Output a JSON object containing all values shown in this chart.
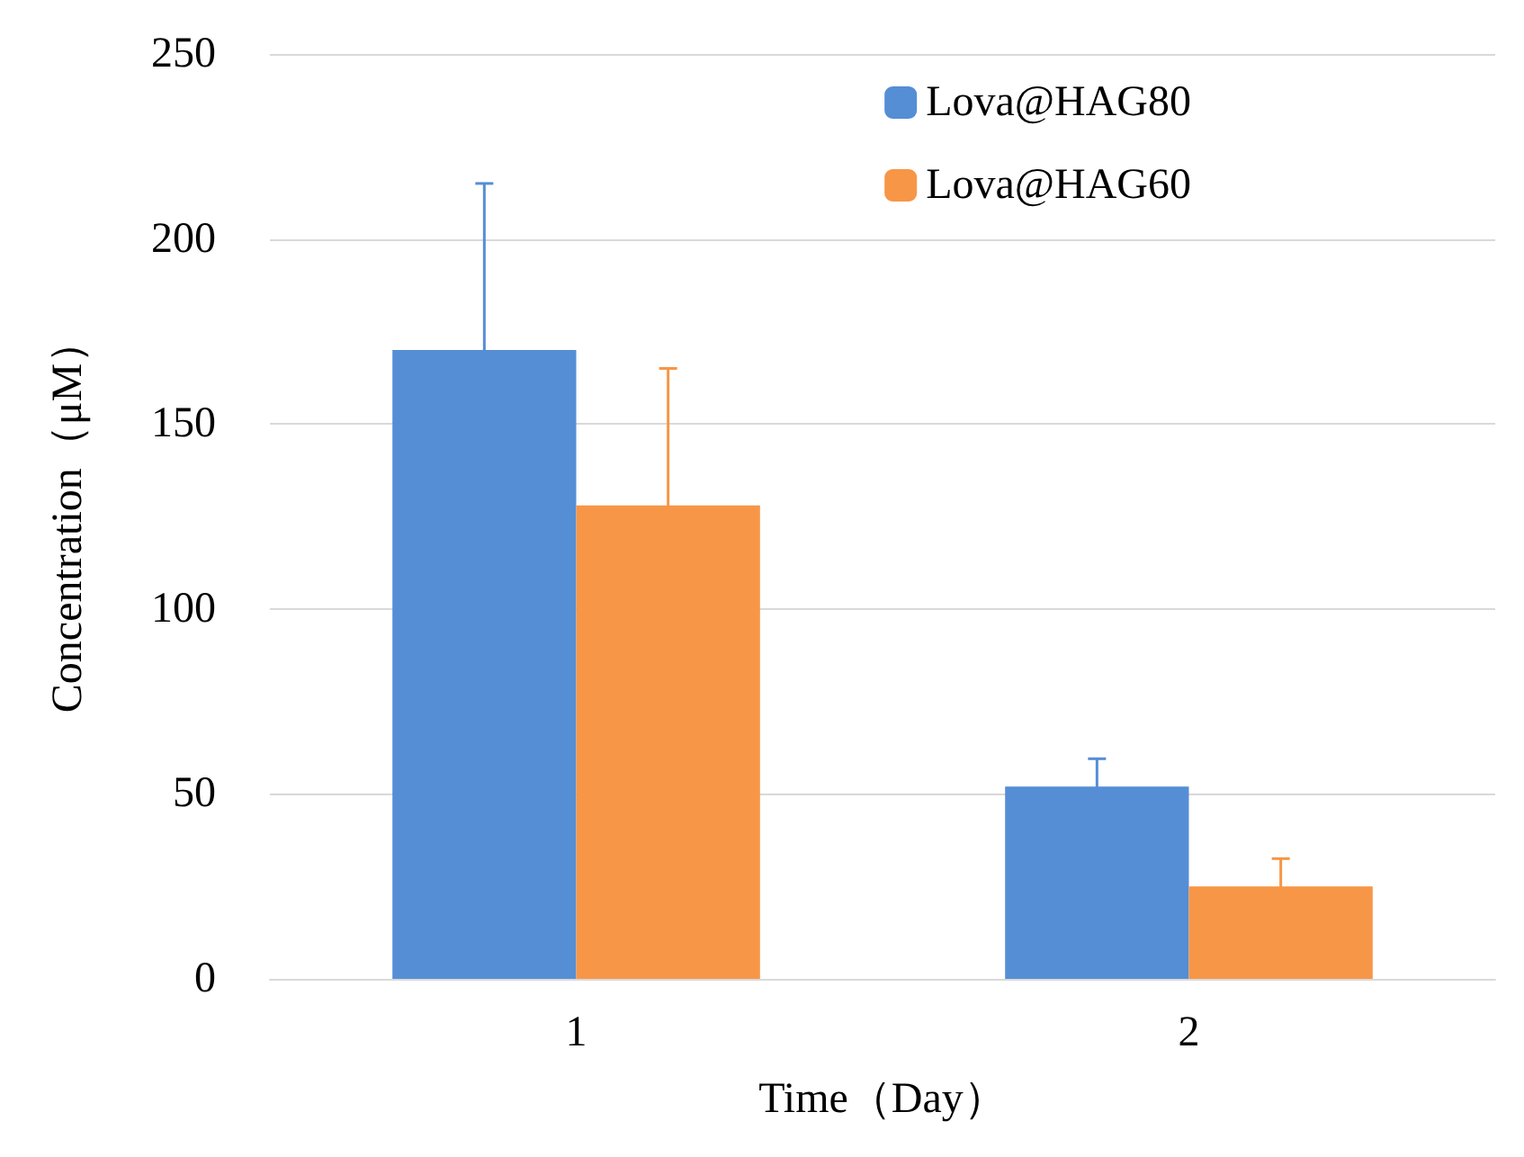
{
  "chart_data": {
    "type": "bar",
    "xlabel": "Time（Day）",
    "ylabel": "Concentration（μM）",
    "categories": [
      "1",
      "2"
    ],
    "series": [
      {
        "name": "Lova@HAG80",
        "color": "#558ed5",
        "values": [
          170,
          52
        ],
        "errors": [
          45,
          7.5
        ]
      },
      {
        "name": "Lova@HAG60",
        "color": "#f79646",
        "values": [
          128,
          25
        ],
        "errors": [
          37,
          7.5
        ]
      }
    ],
    "ylim": [
      0,
      250
    ],
    "yticks": [
      0,
      50,
      100,
      150,
      200,
      250
    ],
    "grid": "y",
    "legend": "top right"
  }
}
